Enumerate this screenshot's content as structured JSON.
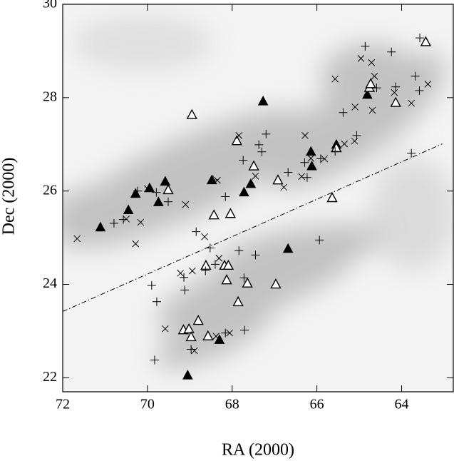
{
  "chart_data": {
    "type": "scatter",
    "xlabel": "RA (2000)",
    "ylabel": "Dec (2000)",
    "xlim": [
      72,
      62.78
    ],
    "ylim": [
      21.7,
      30
    ],
    "xticks": [
      72,
      70,
      68,
      66,
      64
    ],
    "yticks": [
      22,
      24,
      26,
      28,
      30
    ],
    "series": [
      {
        "marker": "triangle-filled",
        "color": "#000000",
        "x": [
          71.11,
          70.28,
          70.45,
          69.95,
          69.58,
          69.74,
          68.48,
          67.72,
          67.56,
          67.27,
          66.68,
          66.14,
          66.12,
          65.54,
          64.81,
          68.3,
          69.05
        ],
        "y": [
          25.22,
          25.94,
          25.59,
          26.06,
          26.2,
          25.76,
          26.23,
          25.97,
          26.15,
          27.92,
          24.76,
          26.84,
          26.53,
          26.99,
          28.06,
          22.81,
          22.05
        ]
      },
      {
        "marker": "triangle-open",
        "color": "#000000",
        "x": [
          68.95,
          67.89,
          68.43,
          68.04,
          67.49,
          66.92,
          69.51,
          65.64,
          65.54,
          64.76,
          64.14,
          63.43,
          68.18,
          68.62,
          68.09,
          68.13,
          67.64,
          67.86,
          66.97,
          69.15,
          69.02,
          68.97,
          68.8,
          68.57,
          64.73
        ],
        "y": [
          27.63,
          27.07,
          25.48,
          25.51,
          26.53,
          26.23,
          26.02,
          25.85,
          26.92,
          28.21,
          27.89,
          29.19,
          24.4,
          24.4,
          24.4,
          24.09,
          24.02,
          23.62,
          24.0,
          23.02,
          23.04,
          22.87,
          23.22,
          22.89,
          28.29
        ]
      },
      {
        "marker": "plus",
        "color": "#000000",
        "x": [
          63.57,
          64.24,
          64.86,
          64.59,
          63.68,
          63.58,
          65.38,
          65.06,
          65.57,
          65.91,
          66.29,
          66.68,
          67.2,
          67.37,
          67.3,
          67.74,
          68.45,
          68.16,
          69.51,
          69.79,
          70.23,
          70.57,
          70.79,
          68.85,
          68.52,
          68.4,
          67.84,
          67.45,
          68.63,
          69.14,
          69.9,
          69.78,
          69.12,
          67.72,
          69.83,
          68.97,
          68.16,
          67.71,
          65.94,
          63.77,
          66.23,
          64.14
        ],
        "y": [
          29.28,
          28.98,
          29.1,
          28.21,
          28.46,
          28.15,
          27.68,
          27.19,
          26.85,
          26.69,
          26.61,
          26.4,
          27.22,
          26.99,
          26.84,
          26.66,
          26.24,
          25.88,
          25.77,
          25.97,
          26.0,
          25.39,
          25.31,
          25.13,
          24.78,
          24.43,
          24.72,
          24.63,
          24.29,
          24.15,
          23.98,
          23.63,
          23.88,
          24.14,
          22.38,
          22.61,
          22.96,
          23.02,
          24.95,
          26.81,
          26.29,
          28.23
        ]
      },
      {
        "marker": "cross",
        "color": "#000000",
        "x": [
          71.66,
          70.28,
          70.16,
          70.5,
          70.0,
          69.1,
          68.65,
          68.35,
          67.84,
          67.45,
          66.78,
          66.36,
          66.28,
          66.14,
          65.82,
          65.35,
          65.1,
          64.96,
          64.71,
          64.64,
          64.69,
          64.17,
          63.77,
          63.38,
          65.11,
          65.57,
          68.31,
          68.94,
          69.22,
          69.58,
          68.89,
          68.38,
          68.06
        ],
        "y": [
          24.98,
          24.87,
          25.33,
          25.4,
          26.05,
          25.71,
          25.02,
          26.23,
          27.19,
          26.32,
          26.08,
          26.31,
          27.19,
          26.7,
          26.69,
          27.01,
          27.8,
          28.84,
          28.75,
          28.46,
          27.73,
          28.11,
          27.88,
          28.29,
          27.07,
          28.4,
          24.56,
          24.29,
          24.24,
          23.05,
          22.58,
          22.89,
          22.96
        ]
      }
    ],
    "lines": [
      {
        "style": "dashdot",
        "color": "#000000",
        "x": [
          72,
          63.04
        ],
        "y": [
          23.42,
          27.01
        ]
      }
    ]
  }
}
